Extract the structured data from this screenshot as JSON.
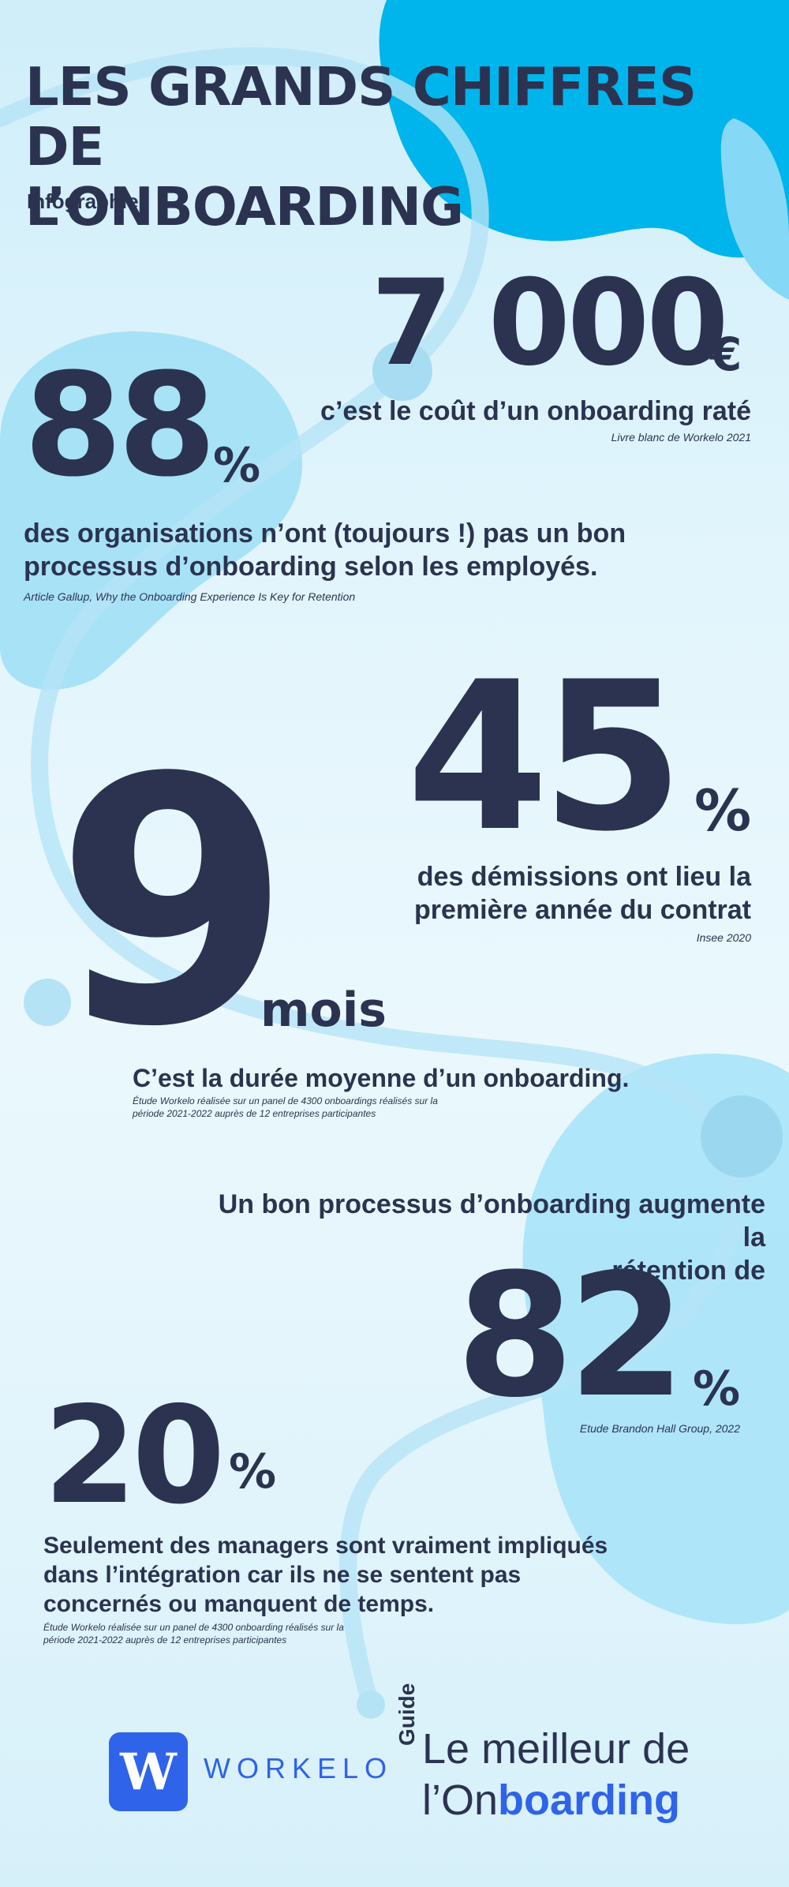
{
  "header": {
    "title_line1": "LES GRANDS CHIFFRES DE",
    "title_line2": "L’ONBOARDING",
    "subtitle": "Infographie"
  },
  "stats": {
    "cost": {
      "value": "7 000",
      "unit": "€",
      "description": "c’est le coût d’un onboarding raté",
      "source": "Livre blanc de Workelo 2021"
    },
    "organisations": {
      "value": "88",
      "unit": "%",
      "description_line1": "des organisations n’ont (toujours !) pas un bon",
      "description_line2": "processus d’onboarding selon les employés.",
      "source": "Article Gallup, Why the Onboarding Experience Is Key for Retention"
    },
    "resignations": {
      "value": "45",
      "unit": "%",
      "description_line1": "des démissions ont lieu la",
      "description_line2": "première année du contrat",
      "source": "Insee 2020"
    },
    "duration": {
      "value": "9",
      "unit": "mois",
      "description": "C’est la durée moyenne d’un onboarding.",
      "source_line1": "Étude Workelo réalisée sur un panel de 4300 onboardings réalisés sur la",
      "source_line2": "période 2021-2022 auprès de 12 entreprises participantes"
    },
    "retention": {
      "intro_line1": "Un bon processus d’onboarding augmente la",
      "intro_line2": "rétention de",
      "value": "82",
      "unit": "%",
      "source": "Etude Brandon Hall Group, 2022"
    },
    "managers": {
      "value": "20",
      "unit": "%",
      "description_line1": "Seulement des managers sont vraiment impliqués",
      "description_line2": "dans l’intégration car ils ne se sentent pas",
      "description_line3": "concernés ou manquent de temps.",
      "source_line1": "Étude Workelo réalisée sur un panel de 4300 onboarding réalisés sur la",
      "source_line2": "période 2021-2022 auprès de 12 entreprises participantes"
    }
  },
  "footer": {
    "logo_letter": "W",
    "brand": "WORKELO",
    "guide_tag": "Guide",
    "guide_line1": "Le meilleur de",
    "guide_line2_prefix": "l’On",
    "guide_line2_highlight": "boarding"
  },
  "colors": {
    "navy": "#2b3350",
    "accent_blue": "#2f63e9",
    "blob_blue": "#00b4ec",
    "light_blue": "#a9e3f8"
  }
}
